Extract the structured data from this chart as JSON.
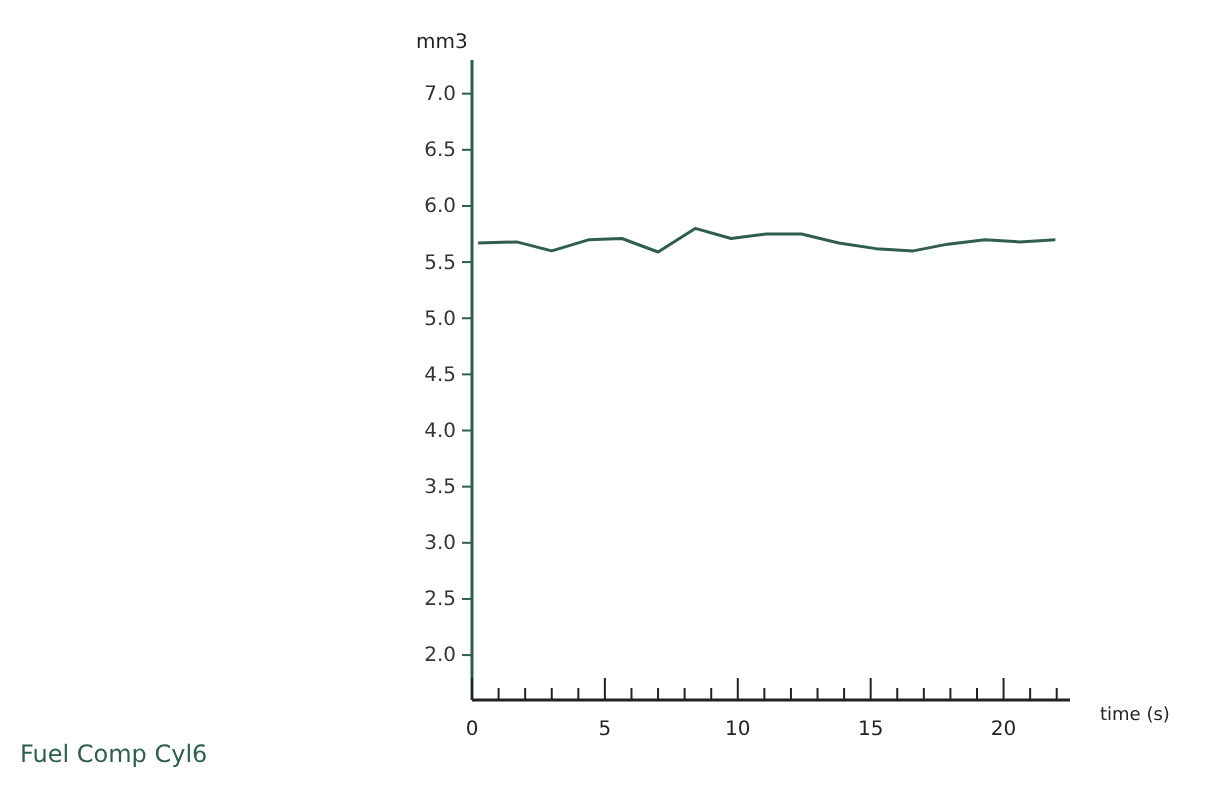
{
  "chart_data": {
    "type": "line",
    "title": "Fuel Comp Cyl6",
    "xlabel": "time (s)",
    "ylabel": "mm3",
    "x": [
      0.23,
      1.68,
      3.0,
      4.41,
      5.64,
      7.0,
      8.4,
      9.75,
      11.07,
      12.4,
      13.8,
      15.2,
      16.6,
      17.9,
      19.3,
      20.6,
      21.95
    ],
    "series": [
      {
        "color": "#2f5d4f",
        "values": [
          5.67,
          5.68,
          5.6,
          5.7,
          5.71,
          5.59,
          5.8,
          5.71,
          5.75,
          5.75,
          5.67,
          5.62,
          5.6,
          5.66,
          5.7,
          5.68,
          5.7
        ]
      }
    ],
    "xlim": [
      0,
      22.5
    ],
    "ylim": [
      1.6,
      7.3
    ],
    "xticks": [
      0,
      {
        "value": 1,
        "label": null
      },
      {
        "value": 2,
        "label": null
      },
      {
        "value": 3,
        "label": null
      },
      {
        "value": 4,
        "label": null
      },
      5,
      {
        "value": 6,
        "label": null
      },
      {
        "value": 7,
        "label": null
      },
      {
        "value": 8,
        "label": null
      },
      {
        "value": 9,
        "label": null
      },
      10,
      {
        "value": 11,
        "label": null
      },
      {
        "value": 12,
        "label": null
      },
      {
        "value": 13,
        "label": null
      },
      {
        "value": 14,
        "label": null
      },
      15,
      {
        "value": 16,
        "label": null
      },
      {
        "value": 17,
        "label": null
      },
      {
        "value": 18,
        "label": null
      },
      {
        "value": 19,
        "label": null
      },
      20,
      {
        "value": 21,
        "label": null
      },
      {
        "value": 22,
        "label": null
      }
    ],
    "yticks": [
      {
        "value": 2,
        "label": "2.0"
      },
      2.5,
      {
        "value": 3,
        "label": "3.0"
      },
      3.5,
      {
        "value": 4,
        "label": "4.0"
      },
      4.5,
      {
        "value": 5,
        "label": "5.0"
      },
      5.5,
      {
        "value": 6,
        "label": "6.0"
      },
      6.5,
      {
        "value": 7,
        "label": "7.0"
      }
    ],
    "grid": false,
    "marker": "none",
    "line_style": "solid"
  }
}
